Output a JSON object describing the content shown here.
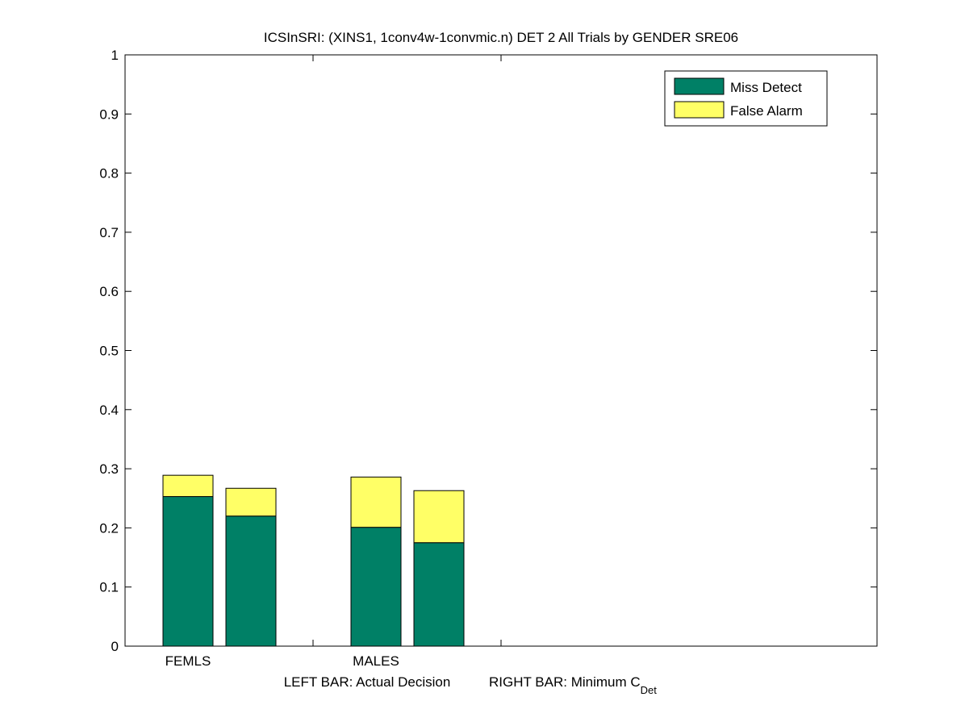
{
  "chart_data": {
    "type": "bar",
    "stacked": true,
    "title": "ICSInSRI: (XINS1, 1conv4w-1convmic.n) DET 2 All Trials by GENDER SRE06",
    "xlabel_left": "LEFT BAR: Actual Decision",
    "xlabel_right": "RIGHT BAR: Minimum C",
    "xlabel_right_subscript": "Det",
    "categories": [
      "FEMLS",
      "MALES"
    ],
    "ylim": [
      0,
      1
    ],
    "yticks": [
      "0",
      "0.1",
      "0.2",
      "0.3",
      "0.4",
      "0.5",
      "0.6",
      "0.7",
      "0.8",
      "0.9",
      "1"
    ],
    "grid": false,
    "legend_position": "top-right",
    "bar_groups": [
      {
        "category": "FEMLS",
        "bars": [
          {
            "name": "Actual Decision",
            "miss_detect": 0.253,
            "false_alarm": 0.036
          },
          {
            "name": "Minimum C_Det",
            "miss_detect": 0.22,
            "false_alarm": 0.047
          }
        ]
      },
      {
        "category": "MALES",
        "bars": [
          {
            "name": "Actual Decision",
            "miss_detect": 0.201,
            "false_alarm": 0.085
          },
          {
            "name": "Minimum C_Det",
            "miss_detect": 0.175,
            "false_alarm": 0.088
          }
        ]
      }
    ],
    "series": [
      {
        "name": "Miss Detect",
        "color": "#008066"
      },
      {
        "name": "False Alarm",
        "color": "#ffff66"
      }
    ]
  }
}
